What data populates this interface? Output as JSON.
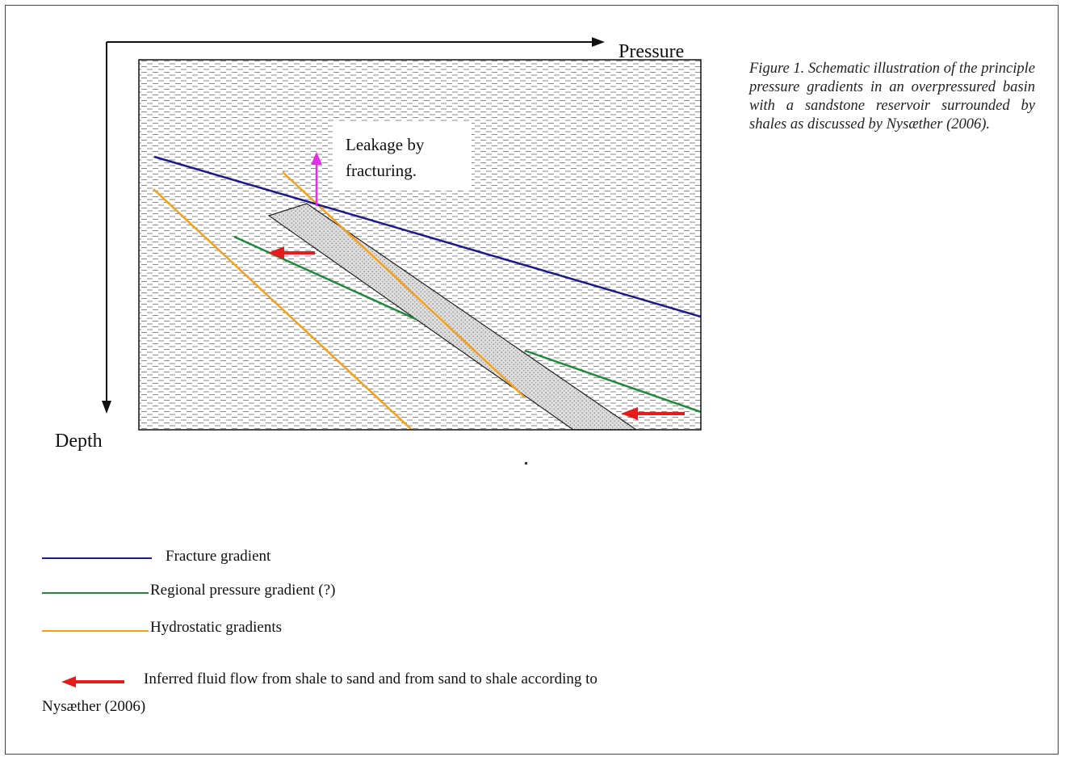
{
  "diagram": {
    "x_axis_label": "Pressure",
    "y_axis_label": "Depth",
    "annotation_leakage": "Leakage by fracturing.",
    "annotation_leakage_lines": [
      "Leakage by",
      "fracturing."
    ]
  },
  "caption": "Figure 1. Schematic illustration of the principle pressure gradients in an overpressured basin with a sandstone reservoir surrounded by shales as discussed by Nysæther (2006).",
  "legend": {
    "fracture": "Fracture gradient",
    "regional": "Regional pressure gradient (?)",
    "hydrostatic": "Hydrostatic gradients",
    "flow_line1": "Inferred fluid flow from shale to sand and from sand to shale according to",
    "flow_line2": "Nysæther (2006)"
  },
  "colors": {
    "fracture_gradient": "#1a1a8c",
    "regional_gradient": "#1e8a3a",
    "hydrostatic_gradient": "#f5a01a",
    "fluid_flow_arrow": "#e61b1b",
    "leakage_arrow": "#e62ee6",
    "shale_dash": "#888888",
    "sandstone_fill": "#cfcfcf"
  }
}
